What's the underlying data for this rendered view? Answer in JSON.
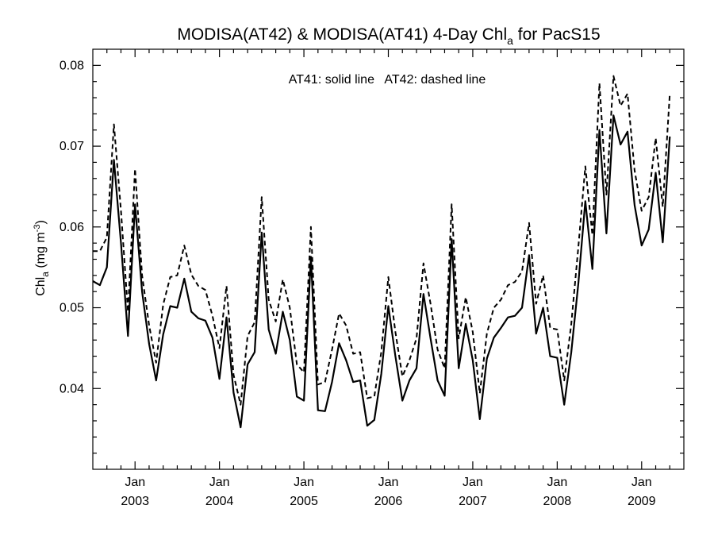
{
  "chart_data": {
    "type": "line",
    "title": {
      "main": "MODISA(AT42) & MODISA(AT41) 4-Day Chl",
      "sub": "a",
      "tail": " for PacS15"
    },
    "ylabel": {
      "main": "Chl",
      "sub": "a",
      "mid": " (mg m",
      "sup": "-3",
      "end": ")"
    },
    "annotation": "AT41: solid line   AT42: dashed line",
    "ylim": [
      0.03,
      0.082
    ],
    "yticks": [
      "0.04",
      "0.05",
      "0.06",
      "0.07",
      "0.08"
    ],
    "x_range": [
      "2002-07",
      "2009-07"
    ],
    "xtick_month_label": "Jan",
    "xtick_years": [
      "2003",
      "2004",
      "2005",
      "2006",
      "2007",
      "2008",
      "2009"
    ],
    "x_interval_months": 1,
    "x_start": "2002-07",
    "series": [
      {
        "style": "solid",
        "values": [
          0.0533,
          0.0528,
          0.055,
          0.0683,
          0.058,
          0.0465,
          0.0628,
          0.052,
          0.0455,
          0.041,
          0.0467,
          0.0502,
          0.05,
          0.0536,
          0.0495,
          0.0487,
          0.0484,
          0.0463,
          0.0412,
          0.0488,
          0.0395,
          0.0352,
          0.043,
          0.0445,
          0.0593,
          0.0473,
          0.0443,
          0.0495,
          0.046,
          0.039,
          0.0385,
          0.0563,
          0.0373,
          0.0372,
          0.0408,
          0.0456,
          0.0435,
          0.0408,
          0.041,
          0.0354,
          0.0361,
          0.0418,
          0.0502,
          0.044,
          0.0385,
          0.041,
          0.0425,
          0.0517,
          0.0462,
          0.041,
          0.0391,
          0.0585,
          0.0425,
          0.048,
          0.0435,
          0.0362,
          0.0437,
          0.0463,
          0.0475,
          0.0488,
          0.049,
          0.05,
          0.0565,
          0.0468,
          0.05,
          0.044,
          0.0438,
          0.038,
          0.0445,
          0.053,
          0.0632,
          0.0548,
          0.072,
          0.0592,
          0.0738,
          0.0702,
          0.0718,
          0.0627,
          0.0577,
          0.0597,
          0.0667,
          0.0581,
          0.0712
        ]
      },
      {
        "style": "dashed",
        "values": [
          0.057,
          0.057,
          0.0587,
          0.0727,
          0.062,
          0.0495,
          0.0672,
          0.054,
          0.0478,
          0.0432,
          0.0504,
          0.0538,
          0.054,
          0.0577,
          0.0541,
          0.0527,
          0.0522,
          0.049,
          0.045,
          0.0527,
          0.0417,
          0.038,
          0.0465,
          0.0482,
          0.0637,
          0.051,
          0.0483,
          0.0535,
          0.05,
          0.043,
          0.042,
          0.06,
          0.0405,
          0.0408,
          0.0448,
          0.0493,
          0.0478,
          0.0443,
          0.0445,
          0.0388,
          0.039,
          0.0445,
          0.0538,
          0.047,
          0.0415,
          0.0435,
          0.0462,
          0.0555,
          0.0505,
          0.0448,
          0.0425,
          0.0628,
          0.0462,
          0.0513,
          0.047,
          0.0394,
          0.0468,
          0.05,
          0.051,
          0.0528,
          0.0532,
          0.0545,
          0.0605,
          0.0505,
          0.054,
          0.0475,
          0.0473,
          0.041,
          0.048,
          0.0575,
          0.0675,
          0.059,
          0.0778,
          0.064,
          0.0787,
          0.075,
          0.0765,
          0.067,
          0.062,
          0.0637,
          0.071,
          0.0625,
          0.0765
        ]
      }
    ],
    "grid": false,
    "colors": {
      "line": "#000000",
      "background": "#ffffff"
    }
  }
}
